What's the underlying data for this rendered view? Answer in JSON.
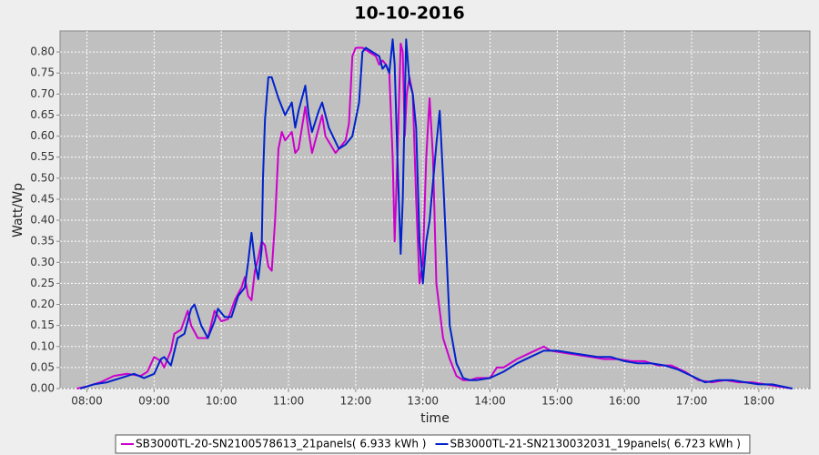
{
  "chart_data": {
    "type": "line",
    "title": "10-10-2016",
    "x_label": "time",
    "y_label": "Watt/Wp",
    "xlim": [
      7.6,
      18.76
    ],
    "ylim": [
      0,
      0.85
    ],
    "xticks": [
      {
        "value": 8,
        "label": "08:00"
      },
      {
        "value": 9,
        "label": "09:00"
      },
      {
        "value": 10,
        "label": "10:00"
      },
      {
        "value": 11,
        "label": "11:00"
      },
      {
        "value": 12,
        "label": "12:00"
      },
      {
        "value": 13,
        "label": "13:00"
      },
      {
        "value": 14,
        "label": "14:00"
      },
      {
        "value": 15,
        "label": "15:00"
      },
      {
        "value": 16,
        "label": "16:00"
      },
      {
        "value": 17,
        "label": "17:00"
      },
      {
        "value": 18,
        "label": "18:00"
      }
    ],
    "yticks": [
      {
        "value": 0,
        "label": "0.00"
      },
      {
        "value": 0.05,
        "label": "0.05"
      },
      {
        "value": 0.1,
        "label": "0.10"
      },
      {
        "value": 0.15,
        "label": "0.15"
      },
      {
        "value": 0.2,
        "label": "0.20"
      },
      {
        "value": 0.25,
        "label": "0.25"
      },
      {
        "value": 0.3,
        "label": "0.30"
      },
      {
        "value": 0.35,
        "label": "0.35"
      },
      {
        "value": 0.4,
        "label": "0.40"
      },
      {
        "value": 0.45,
        "label": "0.45"
      },
      {
        "value": 0.5,
        "label": "0.50"
      },
      {
        "value": 0.55,
        "label": "0.55"
      },
      {
        "value": 0.6,
        "label": "0.60"
      },
      {
        "value": 0.65,
        "label": "0.65"
      },
      {
        "value": 0.7,
        "label": "0.70"
      },
      {
        "value": 0.75,
        "label": "0.75"
      },
      {
        "value": 0.8,
        "label": "0.80"
      }
    ],
    "grid": true,
    "series": [
      {
        "name": "SB3000TL-20-SN2100578613_21panels( 6.933 kWh )",
        "color": "#cc00cc",
        "x": [
          7.85,
          8.0,
          8.2,
          8.4,
          8.6,
          8.8,
          8.9,
          9.0,
          9.1,
          9.15,
          9.25,
          9.3,
          9.4,
          9.5,
          9.55,
          9.65,
          9.8,
          9.9,
          10.0,
          10.1,
          10.2,
          10.3,
          10.35,
          10.4,
          10.45,
          10.5,
          10.55,
          10.6,
          10.65,
          10.7,
          10.75,
          10.8,
          10.85,
          10.9,
          10.95,
          11.05,
          11.1,
          11.15,
          11.25,
          11.3,
          11.35,
          11.45,
          11.5,
          11.55,
          11.7,
          11.75,
          11.85,
          11.9,
          11.95,
          12.0,
          12.1,
          12.2,
          12.3,
          12.35,
          12.4,
          12.45,
          12.5,
          12.55,
          12.58,
          12.62,
          12.67,
          12.7,
          12.73,
          12.76,
          12.8,
          12.85,
          12.9,
          12.95,
          13.0,
          13.05,
          13.1,
          13.15,
          13.2,
          13.3,
          13.4,
          13.5,
          13.6,
          13.7,
          13.8,
          14.0,
          14.1,
          14.2,
          14.4,
          14.6,
          14.8,
          14.9,
          15.1,
          15.3,
          15.5,
          15.7,
          15.9,
          16.1,
          16.3,
          16.5,
          16.7,
          16.9,
          17.1,
          17.3,
          17.5,
          17.7,
          17.9,
          18.1,
          18.3,
          18.5
        ],
        "values": [
          0.0,
          0.005,
          0.015,
          0.03,
          0.035,
          0.03,
          0.04,
          0.075,
          0.065,
          0.05,
          0.09,
          0.13,
          0.14,
          0.185,
          0.15,
          0.12,
          0.12,
          0.185,
          0.16,
          0.165,
          0.21,
          0.24,
          0.265,
          0.22,
          0.21,
          0.28,
          0.31,
          0.35,
          0.34,
          0.29,
          0.28,
          0.4,
          0.57,
          0.61,
          0.59,
          0.61,
          0.56,
          0.57,
          0.67,
          0.61,
          0.56,
          0.62,
          0.65,
          0.6,
          0.56,
          0.57,
          0.59,
          0.63,
          0.79,
          0.81,
          0.81,
          0.8,
          0.79,
          0.77,
          0.78,
          0.77,
          0.75,
          0.55,
          0.35,
          0.55,
          0.82,
          0.8,
          0.6,
          0.7,
          0.74,
          0.7,
          0.45,
          0.25,
          0.3,
          0.55,
          0.69,
          0.55,
          0.25,
          0.12,
          0.07,
          0.03,
          0.02,
          0.02,
          0.025,
          0.025,
          0.05,
          0.05,
          0.07,
          0.085,
          0.1,
          0.09,
          0.085,
          0.08,
          0.075,
          0.07,
          0.07,
          0.065,
          0.065,
          0.055,
          0.055,
          0.04,
          0.02,
          0.015,
          0.02,
          0.015,
          0.015,
          0.01,
          0.005,
          0.0
        ]
      },
      {
        "name": "SB3000TL-21-SN2130032031_19panels( 6.723 kWh )",
        "color": "#0022cc",
        "x": [
          7.9,
          8.1,
          8.3,
          8.5,
          8.7,
          8.85,
          9.0,
          9.1,
          9.15,
          9.25,
          9.35,
          9.45,
          9.55,
          9.6,
          9.7,
          9.8,
          9.9,
          9.95,
          10.05,
          10.15,
          10.25,
          10.35,
          10.4,
          10.45,
          10.5,
          10.55,
          10.6,
          10.62,
          10.65,
          10.7,
          10.75,
          10.85,
          10.95,
          11.05,
          11.1,
          11.15,
          11.25,
          11.3,
          11.35,
          11.45,
          11.5,
          11.6,
          11.75,
          11.85,
          11.95,
          12.05,
          12.1,
          12.15,
          12.25,
          12.35,
          12.4,
          12.45,
          12.5,
          12.55,
          12.58,
          12.62,
          12.67,
          12.7,
          12.75,
          12.8,
          12.85,
          12.9,
          12.95,
          13.0,
          13.05,
          13.1,
          13.2,
          13.25,
          13.3,
          13.4,
          13.5,
          13.6,
          13.7,
          13.8,
          14.0,
          14.2,
          14.4,
          14.6,
          14.8,
          15.0,
          15.2,
          15.4,
          15.6,
          15.8,
          16.0,
          16.2,
          16.4,
          16.6,
          16.8,
          17.0,
          17.2,
          17.4,
          17.6,
          17.8,
          18.0,
          18.2,
          18.5
        ],
        "values": [
          0.0,
          0.01,
          0.015,
          0.025,
          0.035,
          0.025,
          0.035,
          0.07,
          0.075,
          0.055,
          0.12,
          0.13,
          0.19,
          0.2,
          0.15,
          0.12,
          0.16,
          0.19,
          0.17,
          0.17,
          0.22,
          0.24,
          0.3,
          0.37,
          0.3,
          0.26,
          0.33,
          0.5,
          0.64,
          0.74,
          0.74,
          0.69,
          0.65,
          0.68,
          0.62,
          0.66,
          0.72,
          0.65,
          0.61,
          0.66,
          0.68,
          0.62,
          0.57,
          0.58,
          0.6,
          0.68,
          0.8,
          0.81,
          0.8,
          0.79,
          0.76,
          0.77,
          0.75,
          0.83,
          0.77,
          0.55,
          0.32,
          0.45,
          0.83,
          0.73,
          0.7,
          0.62,
          0.35,
          0.25,
          0.35,
          0.4,
          0.58,
          0.66,
          0.5,
          0.15,
          0.06,
          0.025,
          0.02,
          0.02,
          0.025,
          0.04,
          0.06,
          0.075,
          0.09,
          0.09,
          0.085,
          0.08,
          0.075,
          0.075,
          0.065,
          0.06,
          0.06,
          0.055,
          0.045,
          0.03,
          0.015,
          0.02,
          0.02,
          0.015,
          0.01,
          0.01,
          0.0
        ]
      }
    ]
  }
}
